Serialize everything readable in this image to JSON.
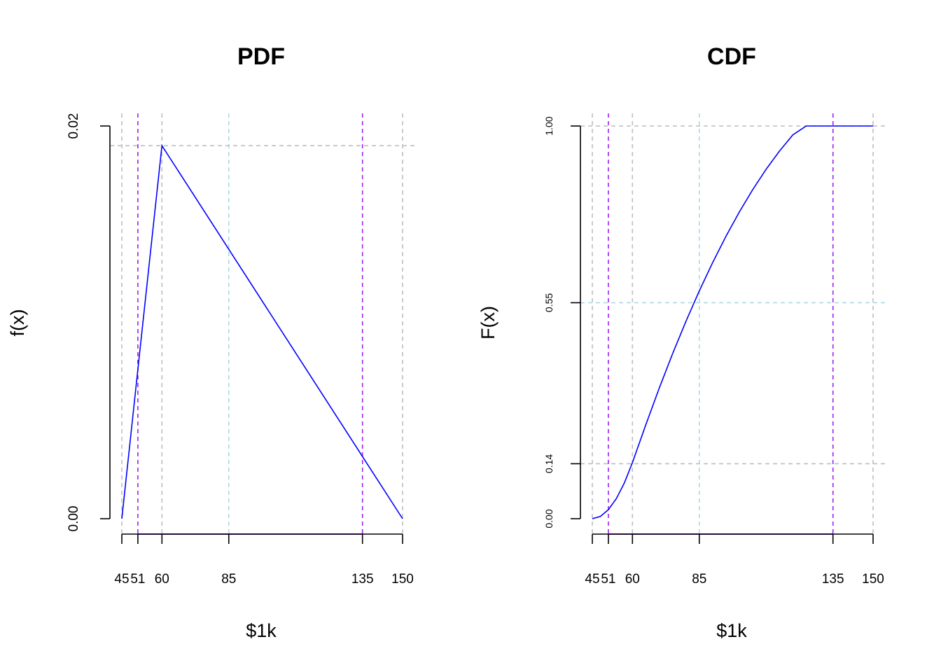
{
  "chart_data": [
    {
      "type": "line",
      "title": "PDF",
      "xlabel": "$1k",
      "ylabel": "f(x)",
      "xlim": [
        45,
        150
      ],
      "ylim": [
        0,
        0.02
      ],
      "x_ticks": [
        45,
        51,
        60,
        85,
        135,
        150
      ],
      "x_tick_labels": [
        "45",
        "51",
        "60",
        "85",
        "135",
        "150"
      ],
      "y_ticks": [
        0,
        0.02
      ],
      "y_tick_labels": [
        "0.00",
        "0.02"
      ],
      "series": [
        {
          "color": "#0000ff",
          "x": [
            45,
            60,
            150
          ],
          "y": [
            0,
            0.019,
            0
          ]
        }
      ],
      "reference_lines": [
        {
          "orientation": "vertical",
          "value": 45,
          "color": "#bebebe",
          "style": "dashed"
        },
        {
          "orientation": "vertical",
          "value": 60,
          "color": "#bebebe",
          "style": "dashed"
        },
        {
          "orientation": "vertical",
          "value": 150,
          "color": "#bebebe",
          "style": "dashed"
        },
        {
          "orientation": "vertical",
          "value": 85,
          "color": "#add8e6",
          "style": "dashed"
        },
        {
          "orientation": "vertical",
          "value": 51,
          "color": "#a020f0",
          "style": "dashed"
        },
        {
          "orientation": "vertical",
          "value": 135,
          "color": "#a020f0",
          "style": "dashed"
        },
        {
          "orientation": "horizontal",
          "value": 0.019,
          "color": "#bebebe",
          "style": "dashed"
        }
      ],
      "interval_segment": {
        "from": 51,
        "to": 135,
        "color": "#a020f0"
      }
    },
    {
      "type": "line",
      "title": "CDF",
      "xlabel": "$1k",
      "ylabel": "F(x)",
      "xlim": [
        45,
        150
      ],
      "ylim": [
        0,
        1
      ],
      "x_ticks": [
        45,
        51,
        60,
        85,
        135,
        150
      ],
      "x_tick_labels": [
        "45",
        "51",
        "60",
        "85",
        "135",
        "150"
      ],
      "y_ticks": [
        0,
        0.14,
        0.55,
        1
      ],
      "y_tick_labels": [
        "0.00",
        "0.14",
        "0.55",
        "1.00"
      ],
      "series": [
        {
          "color": "#0000ff",
          "x": [
            45,
            48,
            51,
            54,
            57,
            60,
            65,
            70,
            75,
            80,
            85,
            90,
            95,
            100,
            105,
            110,
            115,
            120,
            125,
            130,
            135,
            140,
            145,
            150
          ],
          "y": [
            0,
            0.0057,
            0.0229,
            0.0514,
            0.0914,
            0.1429,
            0.239,
            0.332,
            0.4198,
            0.5024,
            0.5799,
            0.6522,
            0.7194,
            0.7813,
            0.8381,
            0.8898,
            0.9362,
            0.9775,
            1.0,
            1.0,
            1.0,
            1.0,
            1.0,
            1.0
          ]
        }
      ],
      "reference_lines": [
        {
          "orientation": "vertical",
          "value": 45,
          "color": "#bebebe",
          "style": "dashed"
        },
        {
          "orientation": "vertical",
          "value": 60,
          "color": "#bebebe",
          "style": "dashed"
        },
        {
          "orientation": "vertical",
          "value": 150,
          "color": "#bebebe",
          "style": "dashed"
        },
        {
          "orientation": "vertical",
          "value": 85,
          "color": "#add8e6",
          "style": "dashed"
        },
        {
          "orientation": "vertical",
          "value": 51,
          "color": "#a020f0",
          "style": "dashed"
        },
        {
          "orientation": "vertical",
          "value": 135,
          "color": "#a020f0",
          "style": "dashed"
        },
        {
          "orientation": "horizontal",
          "value": 1.0,
          "color": "#bebebe",
          "style": "dashed"
        },
        {
          "orientation": "horizontal",
          "value": 0.14,
          "color": "#bebebe",
          "style": "dashed"
        },
        {
          "orientation": "horizontal",
          "value": 0.55,
          "color": "#add8e6",
          "style": "dashed"
        }
      ],
      "interval_segment": {
        "from": 51,
        "to": 135,
        "color": "#a020f0"
      }
    }
  ]
}
